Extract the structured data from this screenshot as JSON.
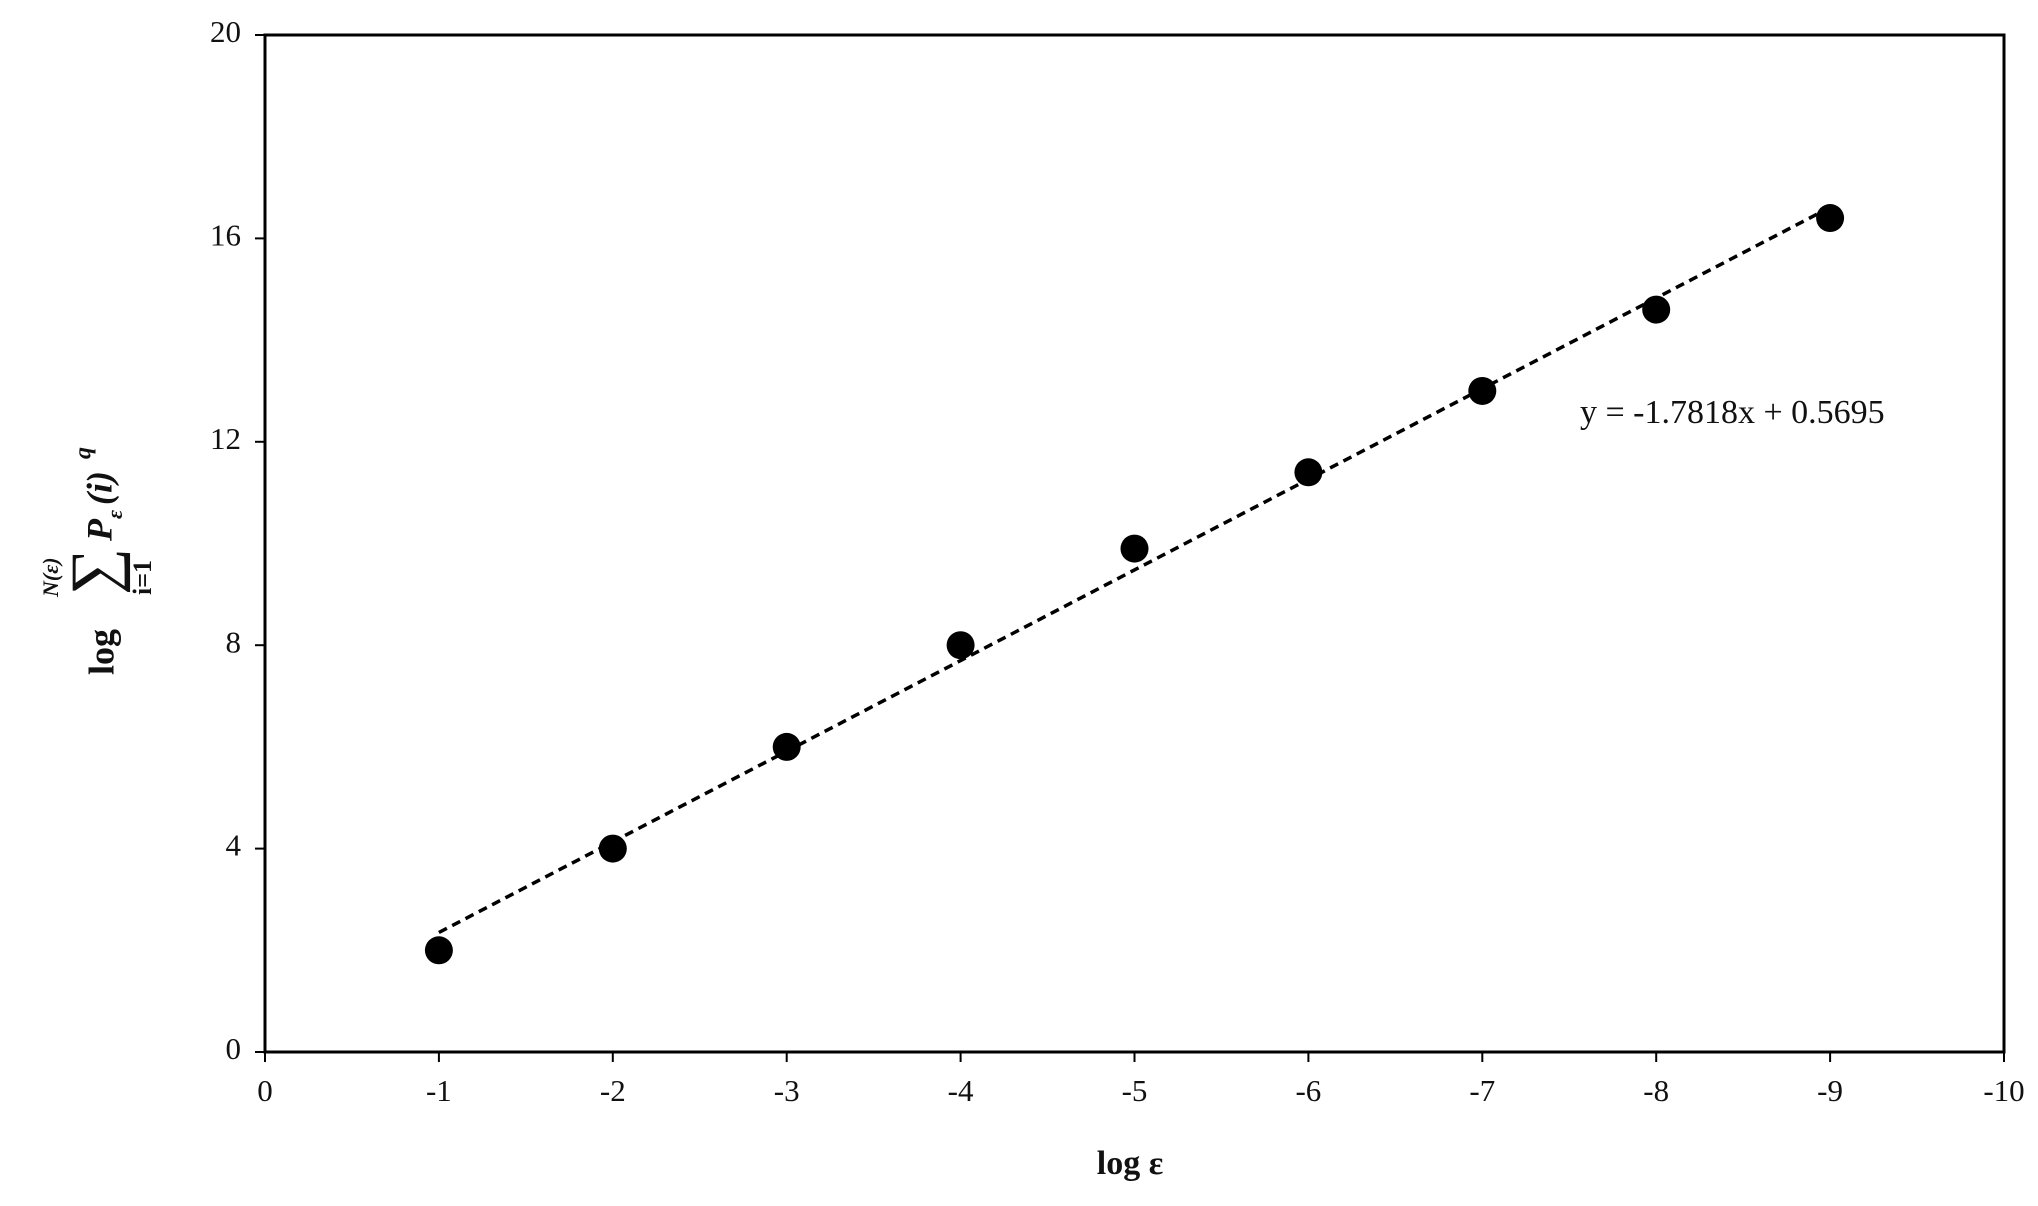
{
  "chart_data": {
    "type": "scatter",
    "x": [
      -1,
      -2,
      -3,
      -4,
      -5,
      -6,
      -7,
      -8,
      -9
    ],
    "values": [
      2.0,
      4.0,
      6.0,
      8.0,
      9.9,
      11.4,
      13.0,
      14.6,
      16.4
    ],
    "color": "#000000",
    "trendline": {
      "x": [
        -1,
        -9
      ],
      "values": [
        2.35,
        16.61
      ],
      "label": "y = -1.7818x + 0.5695"
    },
    "xlim": [
      0,
      -10
    ],
    "xticks": [
      0,
      -1,
      -2,
      -3,
      -4,
      -5,
      -6,
      -7,
      -8,
      -9,
      -10
    ],
    "ylim": [
      0,
      20
    ],
    "yticks": [
      0,
      4,
      8,
      12,
      16,
      20
    ],
    "xlabel": "log ε",
    "ylabel": [
      "log",
      "∑",
      "N(ε)",
      "i=1",
      "P",
      "ε",
      "(i)",
      "q"
    ],
    "grid": false
  }
}
